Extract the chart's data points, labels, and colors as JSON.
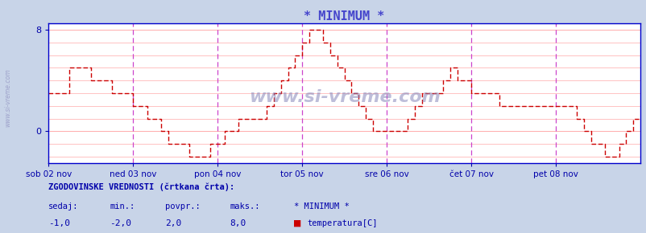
{
  "title": "* MINIMUM *",
  "title_color": "#4444cc",
  "bg_color": "#c8d4e8",
  "plot_bg_color": "#ffffff",
  "line_color": "#cc0000",
  "ylim": [
    -2.5,
    8.5
  ],
  "yticks": [
    0,
    8
  ],
  "tick_color": "#0000aa",
  "grid_color": "#ffaaaa",
  "vline_color": "#cc44cc",
  "xlabel_labels": [
    "sob 02 nov",
    "ned 03 nov",
    "pon 04 nov",
    "tor 05 nov",
    "sre 06 nov",
    "čet 07 nov",
    "pet 08 nov"
  ],
  "watermark": "www.si-vreme.com",
  "footer_line1": "ZGODOVINSKE VREDNOSTI (črtkana črta):",
  "footer_col_labels": [
    "sedaj:",
    "min.:",
    "povpr.:",
    "maks.:",
    "* MINIMUM *"
  ],
  "footer_col_vals": [
    "-1,0",
    "-2,0",
    "2,0",
    "8,0"
  ],
  "footer_legend_label": "temperatura[C]",
  "ylabel_text": "www.si-vreme.com",
  "values": [
    3,
    3,
    3,
    3,
    3,
    3,
    3,
    3,
    3,
    3,
    3,
    3,
    5,
    5,
    5,
    5,
    5,
    5,
    5,
    5,
    5,
    5,
    5,
    5,
    4,
    4,
    4,
    4,
    4,
    4,
    4,
    4,
    4,
    4,
    4,
    4,
    3,
    3,
    3,
    3,
    3,
    3,
    3,
    3,
    3,
    3,
    3,
    3,
    2,
    2,
    2,
    2,
    2,
    2,
    2,
    2,
    1,
    1,
    1,
    1,
    1,
    1,
    1,
    1,
    0,
    0,
    0,
    0,
    -1,
    -1,
    -1,
    -1,
    -1,
    -1,
    -1,
    -1,
    -1,
    -1,
    -1,
    -1,
    -2,
    -2,
    -2,
    -2,
    -2,
    -2,
    -2,
    -2,
    -2,
    -2,
    -2,
    -2,
    -1,
    -1,
    -1,
    -1,
    -1,
    -1,
    -1,
    -1,
    0,
    0,
    0,
    0,
    0,
    0,
    0,
    0,
    1,
    1,
    1,
    1,
    1,
    1,
    1,
    1,
    1,
    1,
    1,
    1,
    1,
    1,
    1,
    1,
    2,
    2,
    2,
    2,
    3,
    3,
    3,
    3,
    4,
    4,
    4,
    4,
    5,
    5,
    5,
    5,
    6,
    6,
    6,
    6,
    7,
    7,
    7,
    7,
    8,
    8,
    8,
    8,
    8,
    8,
    8,
    8,
    7,
    7,
    7,
    7,
    6,
    6,
    6,
    6,
    5,
    5,
    5,
    5,
    4,
    4,
    4,
    4,
    3,
    3,
    3,
    3,
    2,
    2,
    2,
    2,
    1,
    1,
    1,
    1,
    0,
    0,
    0,
    0,
    0,
    0,
    0,
    0,
    0,
    0,
    0,
    0,
    0,
    0,
    0,
    0,
    0,
    0,
    0,
    0,
    1,
    1,
    1,
    1,
    2,
    2,
    2,
    2,
    3,
    3,
    3,
    3,
    3,
    3,
    3,
    3,
    3,
    3,
    3,
    3,
    4,
    4,
    4,
    4,
    5,
    5,
    5,
    5,
    4,
    4,
    4,
    4,
    4,
    4,
    4,
    4,
    3,
    3,
    3,
    3,
    3,
    3,
    3,
    3,
    3,
    3,
    3,
    3,
    3,
    3,
    3,
    3,
    2,
    2,
    2,
    2,
    2,
    2,
    2,
    2,
    2,
    2,
    2,
    2,
    2,
    2,
    2,
    2,
    2,
    2,
    2,
    2,
    2,
    2,
    2,
    2,
    2,
    2,
    2,
    2,
    2,
    2,
    2,
    2,
    2,
    2,
    2,
    2,
    2,
    2,
    2,
    2,
    2,
    2,
    2,
    2,
    1,
    1,
    1,
    1,
    0,
    0,
    0,
    0,
    -1,
    -1,
    -1,
    -1,
    -1,
    -1,
    -1,
    -1,
    -2,
    -2,
    -2,
    -2,
    -2,
    -2,
    -2,
    -2,
    -1,
    -1,
    -1,
    -1,
    0,
    0,
    0,
    0,
    1,
    1,
    1,
    1
  ]
}
